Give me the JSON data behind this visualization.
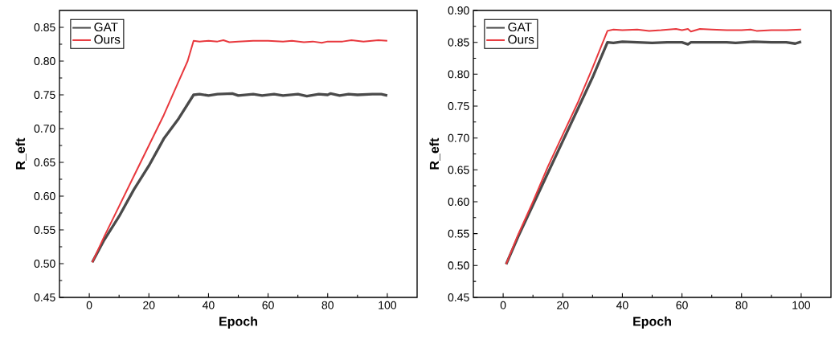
{
  "chart_data": [
    {
      "type": "line",
      "xlabel": "Epoch",
      "ylabel": "R_eft",
      "xlim": [
        -10,
        110
      ],
      "ylim": [
        0.45,
        0.875
      ],
      "xticks": [
        0,
        20,
        40,
        60,
        80,
        100
      ],
      "yticks": [
        {
          "value": 0.45,
          "label": "0.45"
        },
        {
          "value": 0.5,
          "label": "0.50"
        },
        {
          "value": 0.55,
          "label": "0.55"
        },
        {
          "value": 0.6,
          "label": "0.60"
        },
        {
          "value": 0.65,
          "label": "0.65"
        },
        {
          "value": 0.7,
          "label": "0.70"
        },
        {
          "value": 0.75,
          "label": "0.75"
        },
        {
          "value": 0.8,
          "label": "0.80"
        },
        {
          "value": 0.85,
          "label": "0.85"
        }
      ],
      "legend": "top left",
      "grid": false,
      "marker": "none",
      "line_style": "solid",
      "series": [
        {
          "name": "GAT",
          "color": "#4a4a4a",
          "x": [
            1,
            5,
            10,
            15,
            20,
            25,
            30,
            35,
            37,
            40,
            43,
            48,
            50,
            55,
            58,
            62,
            65,
            70,
            73,
            77,
            80,
            81,
            84,
            87,
            90,
            95,
            98,
            100
          ],
          "values": [
            0.502,
            0.535,
            0.57,
            0.61,
            0.645,
            0.685,
            0.715,
            0.75,
            0.751,
            0.749,
            0.751,
            0.752,
            0.749,
            0.751,
            0.749,
            0.751,
            0.749,
            0.751,
            0.748,
            0.751,
            0.75,
            0.752,
            0.749,
            0.751,
            0.75,
            0.751,
            0.751,
            0.749
          ]
        },
        {
          "name": "Ours",
          "color": "#e8383d",
          "x": [
            1,
            5,
            10,
            15,
            20,
            25,
            30,
            33,
            35,
            37,
            40,
            43,
            45,
            47,
            50,
            55,
            60,
            65,
            68,
            72,
            75,
            78,
            80,
            85,
            88,
            92,
            97,
            100
          ],
          "values": [
            0.502,
            0.54,
            0.585,
            0.63,
            0.675,
            0.72,
            0.77,
            0.8,
            0.83,
            0.829,
            0.83,
            0.829,
            0.831,
            0.828,
            0.829,
            0.83,
            0.83,
            0.829,
            0.83,
            0.828,
            0.829,
            0.827,
            0.829,
            0.829,
            0.831,
            0.829,
            0.831,
            0.83
          ]
        }
      ]
    },
    {
      "type": "line",
      "xlabel": "Epoch",
      "ylabel": "R_eft",
      "xlim": [
        -10,
        110
      ],
      "ylim": [
        0.45,
        0.9
      ],
      "xticks": [
        0,
        20,
        40,
        60,
        80,
        100
      ],
      "yticks": [
        {
          "value": 0.45,
          "label": "0.45"
        },
        {
          "value": 0.5,
          "label": "0.50"
        },
        {
          "value": 0.55,
          "label": "0.55"
        },
        {
          "value": 0.6,
          "label": "0.60"
        },
        {
          "value": 0.65,
          "label": "0.65"
        },
        {
          "value": 0.7,
          "label": "0.70"
        },
        {
          "value": 0.75,
          "label": "0.75"
        },
        {
          "value": 0.8,
          "label": "0.80"
        },
        {
          "value": 0.85,
          "label": "0.85"
        },
        {
          "value": 0.9,
          "label": "0.90"
        }
      ],
      "legend": "top left",
      "grid": false,
      "marker": "none",
      "line_style": "solid",
      "series": [
        {
          "name": "GAT",
          "color": "#4a4a4a",
          "x": [
            1,
            5,
            10,
            15,
            20,
            25,
            30,
            35,
            37,
            40,
            45,
            50,
            55,
            60,
            62,
            63,
            70,
            75,
            78,
            84,
            90,
            95,
            98,
            100
          ],
          "values": [
            0.502,
            0.545,
            0.595,
            0.645,
            0.695,
            0.745,
            0.795,
            0.85,
            0.849,
            0.851,
            0.85,
            0.849,
            0.85,
            0.85,
            0.847,
            0.85,
            0.85,
            0.85,
            0.849,
            0.851,
            0.85,
            0.85,
            0.848,
            0.851
          ]
        },
        {
          "name": "Ours",
          "color": "#e8383d",
          "x": [
            1,
            5,
            10,
            15,
            20,
            25,
            30,
            35,
            37,
            40,
            45,
            49,
            53,
            58,
            60,
            62,
            63,
            66,
            70,
            75,
            80,
            83,
            85,
            90,
            95,
            100
          ],
          "values": [
            0.502,
            0.548,
            0.6,
            0.655,
            0.705,
            0.755,
            0.81,
            0.868,
            0.87,
            0.869,
            0.87,
            0.868,
            0.869,
            0.871,
            0.869,
            0.871,
            0.867,
            0.871,
            0.87,
            0.869,
            0.869,
            0.87,
            0.868,
            0.869,
            0.869,
            0.87
          ]
        }
      ]
    }
  ]
}
